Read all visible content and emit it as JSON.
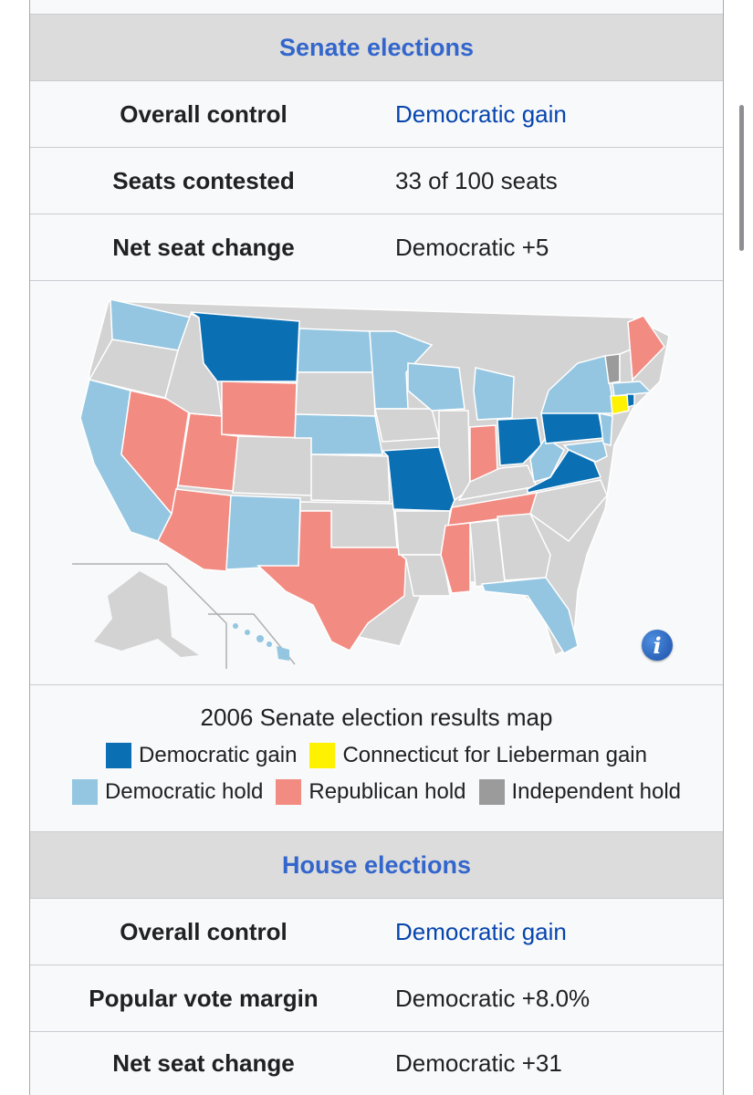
{
  "senate": {
    "header": "Senate elections",
    "rows": [
      {
        "label": "Overall control",
        "value": "Democratic gain"
      },
      {
        "label": "Seats contested",
        "value": "33 of 100 seats"
      },
      {
        "label": "Net seat change",
        "value": "Democratic +5"
      }
    ],
    "map": {
      "caption": "2006 Senate election results map",
      "info_icon": "info-icon",
      "legend": [
        {
          "label": "Democratic gain",
          "color": "#0a6fb3"
        },
        {
          "label": "Connecticut for Lieberman gain",
          "color": "#fff200"
        },
        {
          "label": "Democratic hold",
          "color": "#94c6e2"
        },
        {
          "label": "Republican hold",
          "color": "#f28b82"
        },
        {
          "label": "Independent hold",
          "color": "#9b9b9b"
        }
      ],
      "no_election_color": "#d3d3d3"
    }
  },
  "house": {
    "header": "House elections",
    "rows": [
      {
        "label": "Overall control",
        "value": "Democratic gain"
      },
      {
        "label": "Popular vote margin",
        "value": "Democratic +8.0%"
      },
      {
        "label": "Net seat change",
        "value": "Democratic +31"
      }
    ]
  }
}
